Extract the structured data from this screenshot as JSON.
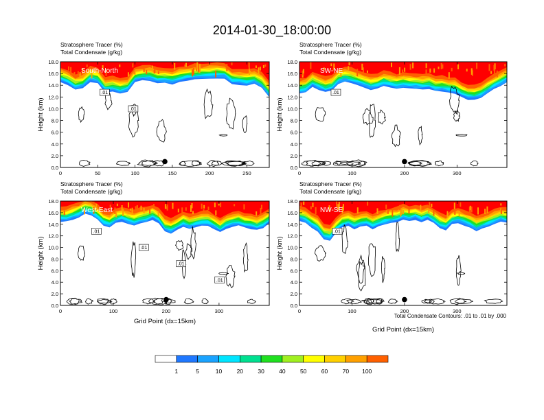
{
  "title": "2014-01-30_18:00:00",
  "colors": {
    "levels": [
      "#ffffff",
      "#1f78ff",
      "#1aa3ff",
      "#00e5ff",
      "#00e090",
      "#20e020",
      "#a0f020",
      "#ffff00",
      "#ffd000",
      "#ffa000",
      "#ff6000",
      "#ff0000"
    ],
    "outline": "#000000"
  },
  "colorbar": {
    "labels": [
      "1",
      "5",
      "10",
      "20",
      "30",
      "40",
      "50",
      "60",
      "70",
      "100"
    ]
  },
  "contour_note": "Total Condensate Contours: .01 to .01 by .000",
  "chart_data": [
    {
      "type": "heatmap",
      "title_lines": [
        "Stratosphere Tracer   (%)",
        "Total Condensate   (g/kg)"
      ],
      "panel_label": "South-North",
      "ylabel": "Height (km)",
      "xlabel": "",
      "xlim": [
        0,
        280
      ],
      "ylim": [
        0,
        18
      ],
      "xticks": [
        0,
        50,
        100,
        150,
        200,
        250
      ],
      "yticks": [
        "0.0",
        "2.0",
        "4.0",
        "6.0",
        "8.0",
        "10.0",
        "12.0",
        "14.0",
        "16.0",
        "18.0"
      ],
      "tracer_base_km": [
        14.5,
        14.0,
        13.2,
        13.5,
        14.6,
        14.3,
        12.8,
        13.0,
        12.6,
        12.9,
        14.5,
        14.8,
        14.8,
        14.3,
        14.4,
        14.2,
        14.6,
        14.8,
        15.0,
        15.0,
        15.2,
        15.2,
        15.2,
        14.2,
        14.1,
        14.0,
        14.2,
        13.5,
        12.0
      ],
      "contour_labels": [
        ".01",
        ".01"
      ],
      "marker": [
        140,
        1.0
      ]
    },
    {
      "type": "heatmap",
      "title_lines": [
        "Stratosphere Tracer   (%)",
        "Total Condensate   (g/kg)"
      ],
      "panel_label": "SW-NE",
      "ylabel": "Height (km)",
      "xlabel": "",
      "xlim": [
        0,
        395
      ],
      "ylim": [
        0,
        18
      ],
      "xticks": [
        0,
        100,
        200,
        300
      ],
      "yticks": [
        "0.0",
        "2.0",
        "4.0",
        "6.0",
        "8.0",
        "10.0",
        "12.0",
        "14.0",
        "16.0",
        "18.0"
      ],
      "tracer_base_km": [
        12.6,
        12.8,
        13.8,
        13.2,
        12.8,
        13.2,
        14.2,
        14.6,
        14.4,
        14.0,
        13.6,
        13.2,
        13.4,
        13.9,
        13.6,
        13.4,
        13.6,
        13.5,
        13.4,
        13.3,
        13.4,
        13.0,
        13.0,
        12.8,
        12.6,
        12.0,
        11.5,
        11.5,
        11.8,
        12.6,
        13.3,
        13.8,
        14.5
      ],
      "contour_labels": [
        ".01"
      ],
      "marker": [
        200,
        1.0
      ]
    },
    {
      "type": "heatmap",
      "title_lines": [
        "Stratosphere Tracer   (%)",
        "Total Condensate   (g/kg)"
      ],
      "panel_label": "West-East",
      "ylabel": "Height (km)",
      "xlabel": "Grid Point (dx=15km)",
      "xlim": [
        0,
        395
      ],
      "ylim": [
        0,
        18
      ],
      "xticks": [
        0,
        100,
        200,
        300
      ],
      "yticks": [
        "0.0",
        "2.0",
        "4.0",
        "6.0",
        "8.0",
        "10.0",
        "12.0",
        "14.0",
        "16.0",
        "18.0"
      ],
      "tracer_base_km": [
        14.4,
        14.5,
        14.8,
        15.2,
        15.8,
        15.6,
        14.8,
        13.8,
        13.5,
        14.2,
        14.5,
        14.0,
        13.8,
        14.2,
        14.4,
        14.8,
        14.2,
        12.8,
        12.4,
        13.0,
        13.6,
        13.2,
        13.4,
        13.8,
        13.8,
        13.2,
        12.6,
        13.2,
        13.6,
        13.8,
        13.4,
        13.2,
        13.0,
        13.4,
        14.2
      ],
      "contour_labels": [
        ".01",
        ".01",
        ".01",
        ".01"
      ],
      "marker": [
        200,
        1.0
      ]
    },
    {
      "type": "heatmap",
      "title_lines": [
        "Stratosphere Tracer   (%)",
        "Total Condensate   (g/kg)"
      ],
      "panel_label": "NW-SE",
      "ylabel": "Height (km)",
      "xlabel": "Grid Point (dx=15km)",
      "xlim": [
        0,
        395
      ],
      "ylim": [
        0,
        18
      ],
      "xticks": [
        0,
        100,
        200,
        300
      ],
      "yticks": [
        "0.0",
        "2.0",
        "4.0",
        "6.0",
        "8.0",
        "10.0",
        "12.0",
        "14.0",
        "16.0",
        "18.0"
      ],
      "tracer_base_km": [
        14.6,
        14.2,
        13.4,
        12.8,
        11.4,
        11.2,
        12.6,
        13.4,
        13.8,
        13.2,
        13.6,
        13.8,
        13.2,
        13.6,
        14.0,
        14.2,
        14.4,
        14.8,
        14.6,
        14.8,
        14.4,
        14.8,
        14.2,
        13.4,
        13.0,
        14.0,
        14.2,
        13.8,
        13.4,
        12.8,
        13.2,
        13.6,
        14.0,
        14.4,
        14.2
      ],
      "contour_labels": [
        ".01"
      ],
      "marker": [
        200,
        1.0
      ]
    }
  ]
}
